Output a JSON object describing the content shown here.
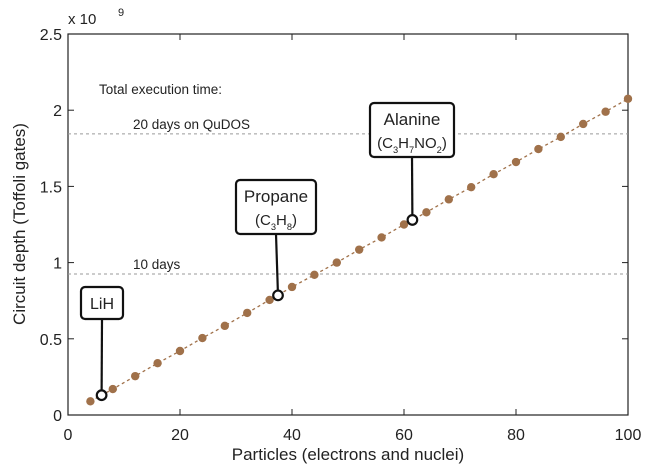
{
  "chart_data": {
    "type": "scatter",
    "title": "",
    "xlabel": "Particles (electrons and nuclei)",
    "ylabel": "Circuit depth (Toffoli gates)",
    "xlim": [
      0,
      100
    ],
    "ylim": [
      0,
      2.5
    ],
    "x_ticks": [
      0,
      20,
      40,
      60,
      80,
      100
    ],
    "y_ticks": [
      0,
      0.5,
      1,
      1.5,
      2,
      2.5
    ],
    "x_tick_labels": [
      "0",
      "20",
      "40",
      "60",
      "80",
      "100"
    ],
    "y_tick_labels": [
      "0",
      "0.5",
      "1",
      "1.5",
      "2",
      "2.5"
    ],
    "y_exponent": {
      "base": "x 10",
      "power": "9"
    },
    "series": [
      {
        "name": "Circuit depth",
        "color": "#a0714a",
        "x": [
          4,
          8,
          12,
          16,
          20,
          24,
          28,
          32,
          36,
          40,
          44,
          48,
          52,
          56,
          60,
          64,
          68,
          72,
          76,
          80,
          84,
          88,
          92,
          96,
          100
        ],
        "y": [
          0.09,
          0.17,
          0.255,
          0.34,
          0.42,
          0.505,
          0.585,
          0.67,
          0.755,
          0.84,
          0.92,
          1.0,
          1.085,
          1.165,
          1.25,
          1.33,
          1.415,
          1.495,
          1.58,
          1.66,
          1.745,
          1.825,
          1.91,
          1.99,
          2.075
        ]
      }
    ],
    "header_note": "Total execution time:",
    "reference_lines": [
      {
        "label": "20 days on QuDOS",
        "y": 1.845
      },
      {
        "label": "10 days",
        "y": 0.925
      }
    ],
    "annotations": [
      {
        "name": "lih",
        "label_parts": [
          {
            "t": "LiH",
            "sub": false
          }
        ],
        "x": 6,
        "y": 0.13
      },
      {
        "name": "propane",
        "title": "Propane",
        "label_parts": [
          {
            "t": "(C",
            "sub": false
          },
          {
            "t": "3",
            "sub": true
          },
          {
            "t": "H",
            "sub": false
          },
          {
            "t": "8",
            "sub": true
          },
          {
            "t": ")",
            "sub": false
          }
        ],
        "x": 37.5,
        "y": 0.785
      },
      {
        "name": "alanine",
        "title": "Alanine",
        "label_parts": [
          {
            "t": "(C",
            "sub": false
          },
          {
            "t": "3",
            "sub": true
          },
          {
            "t": "H",
            "sub": false
          },
          {
            "t": "7",
            "sub": true
          },
          {
            "t": "NO",
            "sub": false
          },
          {
            "t": "2",
            "sub": true
          },
          {
            "t": ")",
            "sub": false
          }
        ],
        "x": 61.5,
        "y": 1.28
      }
    ]
  }
}
